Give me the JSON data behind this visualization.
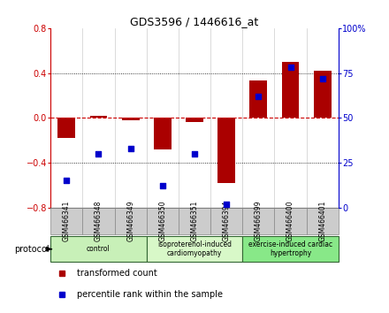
{
  "title": "GDS3596 / 1446616_at",
  "samples": [
    "GSM466341",
    "GSM466348",
    "GSM466349",
    "GSM466350",
    "GSM466351",
    "GSM466394",
    "GSM466399",
    "GSM466400",
    "GSM466401"
  ],
  "bar_values": [
    -0.18,
    0.02,
    -0.02,
    -0.28,
    -0.04,
    -0.58,
    0.33,
    0.5,
    0.42
  ],
  "scatter_values": [
    15,
    30,
    33,
    12,
    30,
    2,
    62,
    78,
    72
  ],
  "left_ylim": [
    -0.8,
    0.8
  ],
  "right_ylim": [
    0,
    100
  ],
  "left_yticks": [
    -0.8,
    -0.4,
    0.0,
    0.4,
    0.8
  ],
  "right_yticks": [
    0,
    25,
    50,
    75,
    100
  ],
  "bar_color": "#aa0000",
  "scatter_color": "#0000cc",
  "zero_line_color": "#cc0000",
  "dot_line_color": "#000000",
  "groups": [
    {
      "label": "control",
      "start": 0,
      "end": 3,
      "color": "#c8f0b8"
    },
    {
      "label": "isoproterenol-induced\ncardiomyopathy",
      "start": 3,
      "end": 6,
      "color": "#d8f8c8"
    },
    {
      "label": "exercise-induced cardiac\nhypertrophy",
      "start": 6,
      "end": 9,
      "color": "#88e888"
    }
  ],
  "group_border_color": "#336633",
  "sample_box_color": "#cccccc",
  "sample_box_border": "#888888",
  "protocol_label": "protocol",
  "legend_bar_label": "transformed count",
  "legend_scatter_label": "percentile rank within the sample",
  "background_color": "#ffffff",
  "plot_bg_color": "#ffffff",
  "left_tick_color": "#cc0000",
  "right_tick_color": "#0000cc"
}
